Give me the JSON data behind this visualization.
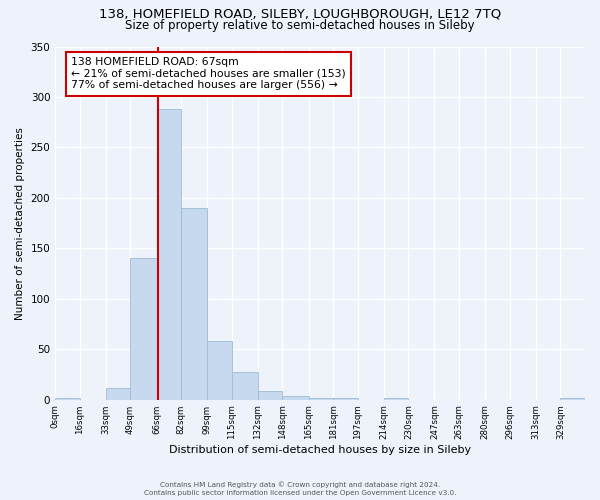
{
  "title": "138, HOMEFIELD ROAD, SILEBY, LOUGHBOROUGH, LE12 7TQ",
  "subtitle": "Size of property relative to semi-detached houses in Sileby",
  "xlabel": "Distribution of semi-detached houses by size in Sileby",
  "ylabel": "Number of semi-detached properties",
  "bin_edges": [
    0,
    16,
    33,
    49,
    66,
    82,
    99,
    115,
    132,
    148,
    165,
    181,
    197,
    214,
    230,
    247,
    263,
    280,
    296,
    313,
    329,
    345
  ],
  "bar_heights": [
    2,
    0,
    12,
    140,
    288,
    190,
    58,
    27,
    9,
    4,
    2,
    2,
    0,
    2,
    0,
    0,
    0,
    0,
    0,
    0,
    2
  ],
  "bar_color": "#c6d9ee",
  "bar_edgecolor": "#9dbcd4",
  "property_value": 67,
  "property_label": "138 HOMEFIELD ROAD: 67sqm",
  "smaller_pct": 21,
  "smaller_count": 153,
  "larger_pct": 77,
  "larger_count": 556,
  "vline_color": "#cc0000",
  "annotation_box_edgecolor": "#cc0000",
  "ylim": [
    0,
    350
  ],
  "xlim": [
    0,
    345
  ],
  "bg_color": "#eef3fb",
  "grid_color": "#ffffff",
  "title_fontsize": 9.5,
  "subtitle_fontsize": 8.5,
  "annot_fontsize": 7.8,
  "tick_labels": [
    "0sqm",
    "16sqm",
    "33sqm",
    "49sqm",
    "66sqm",
    "82sqm",
    "99sqm",
    "115sqm",
    "132sqm",
    "148sqm",
    "165sqm",
    "181sqm",
    "197sqm",
    "214sqm",
    "230sqm",
    "247sqm",
    "263sqm",
    "280sqm",
    "296sqm",
    "313sqm",
    "329sqm"
  ],
  "footer_line1": "Contains HM Land Registry data © Crown copyright and database right 2024.",
  "footer_line2": "Contains public sector information licensed under the Open Government Licence v3.0."
}
